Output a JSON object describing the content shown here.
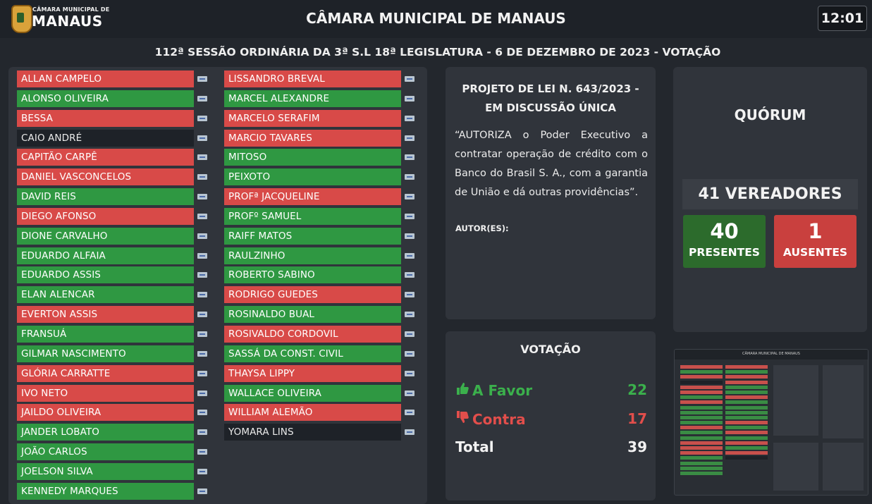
{
  "header": {
    "logo_small": "CÂMARA MUNICIPAL DE",
    "logo_big": "MANAUS",
    "title": "CÂMARA MUNICIPAL DE MANAUS",
    "time": "12:01"
  },
  "session": {
    "title": "112ª SESSÃO ORDINÁRIA DA 3ª S.L 18ª LEGISLATURA - 6 DE DEZEMBRO DE 2023 - VOTAÇÃO"
  },
  "councilors_col1": [
    {
      "name": "ALLAN CAMPELO",
      "vote": "red"
    },
    {
      "name": "ALONSO OLIVEIRA",
      "vote": "green"
    },
    {
      "name": "BESSA",
      "vote": "red"
    },
    {
      "name": "CAIO ANDRÉ",
      "vote": "none"
    },
    {
      "name": "CAPITÃO CARPÊ",
      "vote": "red"
    },
    {
      "name": "DANIEL VASCONCELOS",
      "vote": "red"
    },
    {
      "name": "DAVID REIS",
      "vote": "green"
    },
    {
      "name": "DIEGO AFONSO",
      "vote": "red"
    },
    {
      "name": "DIONE CARVALHO",
      "vote": "green"
    },
    {
      "name": "EDUARDO ALFAIA",
      "vote": "green"
    },
    {
      "name": "EDUARDO ASSIS",
      "vote": "green"
    },
    {
      "name": "ELAN ALENCAR",
      "vote": "green"
    },
    {
      "name": "EVERTON ASSIS",
      "vote": "red"
    },
    {
      "name": "FRANSUÁ",
      "vote": "green"
    },
    {
      "name": "GILMAR NASCIMENTO",
      "vote": "green"
    },
    {
      "name": "GLÓRIA CARRATTE",
      "vote": "red"
    },
    {
      "name": "IVO NETO",
      "vote": "red"
    },
    {
      "name": "JAILDO OLIVEIRA",
      "vote": "red"
    },
    {
      "name": "JANDER LOBATO",
      "vote": "green"
    },
    {
      "name": "JOÃO CARLOS",
      "vote": "green"
    },
    {
      "name": "JOELSON SILVA",
      "vote": "green"
    },
    {
      "name": "KENNEDY MARQUES",
      "vote": "green"
    }
  ],
  "councilors_col2": [
    {
      "name": "LISSANDRO BREVAL",
      "vote": "red"
    },
    {
      "name": "MARCEL ALEXANDRE",
      "vote": "green"
    },
    {
      "name": "MARCELO SERAFIM",
      "vote": "red"
    },
    {
      "name": "MARCIO TAVARES",
      "vote": "red"
    },
    {
      "name": "MITOSO",
      "vote": "green"
    },
    {
      "name": "PEIXOTO",
      "vote": "green"
    },
    {
      "name": "PROFª JACQUELINE",
      "vote": "red"
    },
    {
      "name": "PROFº SAMUEL",
      "vote": "green"
    },
    {
      "name": "RAIFF MATOS",
      "vote": "green"
    },
    {
      "name": "RAULZINHO",
      "vote": "green"
    },
    {
      "name": "ROBERTO SABINO",
      "vote": "green"
    },
    {
      "name": "RODRIGO GUEDES",
      "vote": "red"
    },
    {
      "name": "ROSINALDO BUAL",
      "vote": "green"
    },
    {
      "name": "ROSIVALDO CORDOVIL",
      "vote": "red"
    },
    {
      "name": "SASSÁ DA CONST. CIVIL",
      "vote": "green"
    },
    {
      "name": "THAYSA LIPPY",
      "vote": "red"
    },
    {
      "name": "WALLACE OLIVEIRA",
      "vote": "green"
    },
    {
      "name": "WILLIAM ALEMÃO",
      "vote": "red"
    },
    {
      "name": "YOMARA LINS",
      "vote": "none"
    }
  ],
  "project": {
    "title_line1": "PROJETO DE LEI N. 643/2023 -",
    "title_line2": "EM DISCUSSÃO ÚNICA",
    "text": "“AUTORIZA o Poder Executivo a contratar operação de crédito com o Banco do Brasil S. A., com a garantia de União e dá outras providências”.",
    "authors_label": "AUTOR(ES):"
  },
  "quorum": {
    "title": "QUÓRUM",
    "total": "41 VEREADORES",
    "present_count": "40",
    "present_label": "PRESENTES",
    "absent_count": "1",
    "absent_label": "AUSENTES"
  },
  "voting": {
    "title": "VOTAÇÃO",
    "favor_label": "A Favor",
    "favor_value": "22",
    "contra_label": "Contra",
    "contra_value": "17",
    "total_label": "Total",
    "total_value": "39"
  },
  "colors": {
    "favor": "#2f9842",
    "contra": "#d84a48",
    "background": "#23272d",
    "panel": "#30343b"
  },
  "icons": {
    "favor": "thumbs-up-icon",
    "contra": "thumbs-down-icon",
    "party": "party-flag-icon"
  }
}
